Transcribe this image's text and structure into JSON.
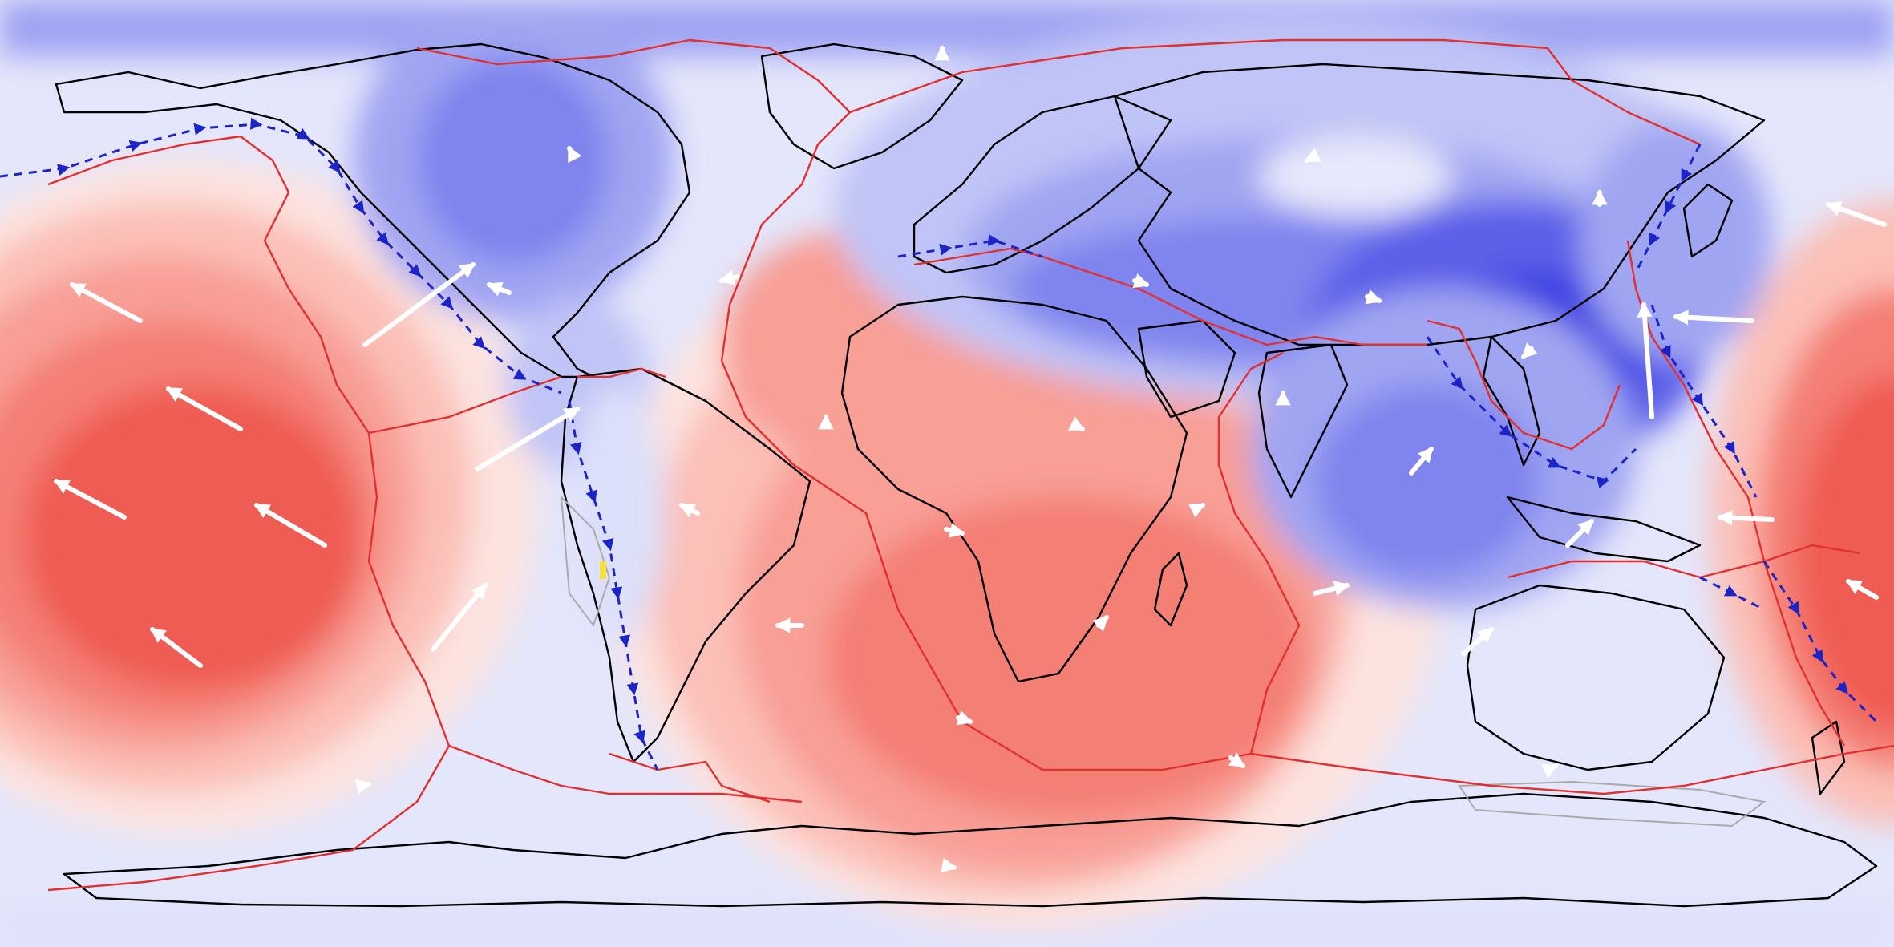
{
  "map": {
    "projection": "equirectangular",
    "extent": {
      "lon": [
        -180,
        180
      ],
      "lat": [
        -90,
        90
      ]
    },
    "colors": {
      "ocean_background": "#e4e6fb",
      "positive_scale": [
        "#fde3df",
        "#fbc0b8",
        "#f89f96",
        "#f47f75",
        "#ef5c52",
        "#e93f38"
      ],
      "negative_scale": [
        "#dde0fa",
        "#c0c4f6",
        "#a0a5f2",
        "#7f84ee",
        "#5b5fe8",
        "#3a3de2"
      ],
      "plate_boundary": "#e03030",
      "subduction_zone": "#1c24c8",
      "coastline": "#000000",
      "velocity_vector": "#ffffff",
      "ice_shelf_outline": "#aaaaaa",
      "yellow_marker": "#f3e13a"
    },
    "layers": [
      "geoid-field",
      "coastlines",
      "plate-boundaries",
      "subduction-zones",
      "velocity-vectors"
    ]
  }
}
